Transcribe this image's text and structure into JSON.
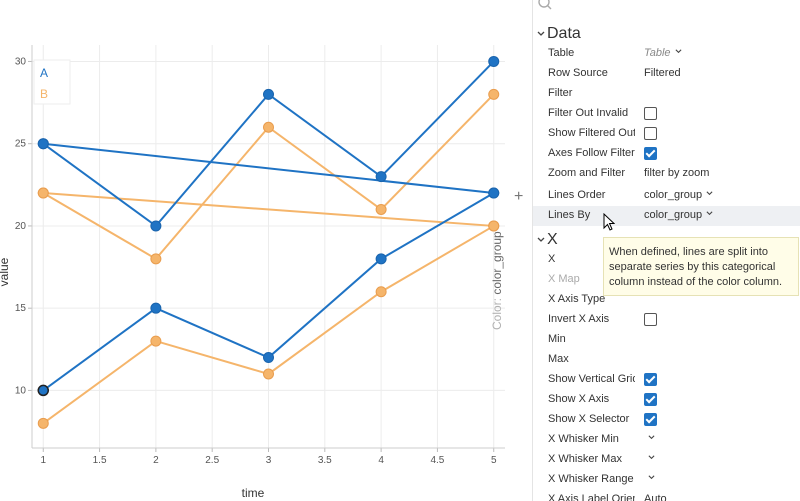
{
  "chart_data": {
    "type": "line",
    "xlabel": "time",
    "ylabel": "value",
    "xlim": [
      0.9,
      5.1
    ],
    "ylim": [
      6.5,
      31
    ],
    "x_ticks": [
      "1",
      "1.5",
      "2",
      "2.5",
      "3",
      "3.5",
      "4",
      "4.5",
      "5"
    ],
    "y_ticks": [
      "10",
      "15",
      "20",
      "25",
      "30"
    ],
    "legend_position": "top-left",
    "series": [
      {
        "name": "A",
        "color": "#1f73c4",
        "lines": [
          {
            "x": [
              1,
              2,
              3,
              4,
              5
            ],
            "y": [
              25,
              20,
              28,
              23,
              30
            ]
          },
          {
            "x": [
              1,
              5
            ],
            "y": [
              25,
              22
            ]
          },
          {
            "x": [
              1,
              2,
              3,
              4,
              5
            ],
            "y": [
              10,
              15,
              12,
              18,
              22
            ]
          }
        ]
      },
      {
        "name": "B",
        "color": "#f5b56b",
        "lines": [
          {
            "x": [
              1,
              2,
              3,
              4,
              5
            ],
            "y": [
              22,
              18,
              26,
              21,
              28
            ]
          },
          {
            "x": [
              1,
              5
            ],
            "y": [
              22,
              20
            ]
          },
          {
            "x": [
              1,
              2,
              3,
              4,
              5
            ],
            "y": [
              8,
              13,
              11,
              16,
              20
            ]
          }
        ]
      }
    ]
  },
  "color_axis": {
    "prefix": "Color:",
    "value": "color_group"
  },
  "panel": {
    "data_section": "Data",
    "x_section": "X",
    "rows": {
      "table": {
        "label": "Table",
        "value": "Table"
      },
      "row_source": {
        "label": "Row Source",
        "value": "Filtered"
      },
      "filter": {
        "label": "Filter"
      },
      "filter_out_invalid": {
        "label": "Filter Out Invalid",
        "checked": false
      },
      "show_filtered_out": {
        "label": "Show Filtered Out",
        "checked": false
      },
      "axes_follow_filter": {
        "label": "Axes Follow Filter",
        "checked": true
      },
      "zoom_and_filter": {
        "label": "Zoom and Filter",
        "value": "filter by zoom"
      },
      "lines_order": {
        "label": "Lines Order",
        "value": "color_group"
      },
      "lines_by": {
        "label": "Lines By",
        "value": "color_group"
      },
      "x": {
        "label": "X"
      },
      "x_map": {
        "label": "X Map"
      },
      "x_axis_type": {
        "label": "X Axis Type"
      },
      "invert_x_axis": {
        "label": "Invert X Axis",
        "checked": false
      },
      "min": {
        "label": "Min"
      },
      "max": {
        "label": "Max"
      },
      "show_vertical_grid": {
        "label": "Show Vertical Grid",
        "checked": true
      },
      "show_x_axis": {
        "label": "Show X Axis",
        "checked": true
      },
      "show_x_selector": {
        "label": "Show X Selector",
        "checked": true
      },
      "x_whisker_min": {
        "label": "X Whisker Min"
      },
      "x_whisker_max": {
        "label": "X Whisker Max"
      },
      "x_whisker_range": {
        "label": "X Whisker Range"
      },
      "x_axis_label_orientation": {
        "label": "X Axis Label Orientation",
        "value": "Auto"
      }
    }
  },
  "tooltip": "When defined, lines are split into separate series by this categorical column instead of the color column.",
  "colors": {
    "accent": "#1f73c4",
    "series_a": "#1f73c4",
    "series_b": "#f5b56b"
  }
}
